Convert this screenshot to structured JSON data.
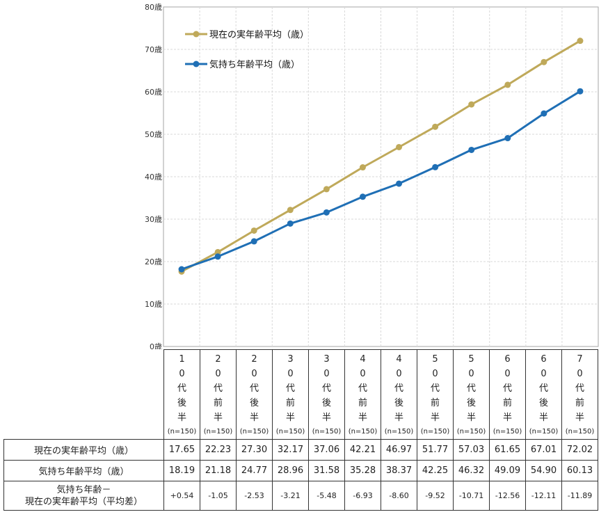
{
  "chart_data": {
    "type": "line",
    "categories": [
      "10代後半",
      "20代前半",
      "20代後半",
      "30代前半",
      "30代後半",
      "40代前半",
      "40代後半",
      "50代前半",
      "50代後半",
      "60代前半",
      "60代後半",
      "70代前半"
    ],
    "category_chars": [
      [
        "1",
        "0",
        "代",
        "後",
        "半"
      ],
      [
        "2",
        "0",
        "代",
        "前",
        "半"
      ],
      [
        "2",
        "0",
        "代",
        "後",
        "半"
      ],
      [
        "3",
        "0",
        "代",
        "前",
        "半"
      ],
      [
        "3",
        "0",
        "代",
        "後",
        "半"
      ],
      [
        "4",
        "0",
        "代",
        "前",
        "半"
      ],
      [
        "4",
        "0",
        "代",
        "後",
        "半"
      ],
      [
        "5",
        "0",
        "代",
        "前",
        "半"
      ],
      [
        "5",
        "0",
        "代",
        "後",
        "半"
      ],
      [
        "6",
        "0",
        "代",
        "前",
        "半"
      ],
      [
        "6",
        "0",
        "代",
        "後",
        "半"
      ],
      [
        "7",
        "0",
        "代",
        "前",
        "半"
      ]
    ],
    "n_label": "(n=150)",
    "y_ticks": [
      "0歳",
      "10歳",
      "20歳",
      "30歳",
      "40歳",
      "50歳",
      "60歳",
      "70歳",
      "80歳"
    ],
    "ylim": [
      0,
      80
    ],
    "grid": true,
    "legend_position": "top-left",
    "series": [
      {
        "name": "現在の実年齢平均（歳）",
        "color": "#BFA95A",
        "values": [
          17.65,
          22.23,
          27.3,
          32.17,
          37.06,
          42.21,
          46.97,
          51.77,
          57.03,
          61.65,
          67.01,
          72.02
        ],
        "labels": [
          "17.65",
          "22.23",
          "27.30",
          "32.17",
          "37.06",
          "42.21",
          "46.97",
          "51.77",
          "57.03",
          "61.65",
          "67.01",
          "72.02"
        ]
      },
      {
        "name": "気持ち年齢平均（歳）",
        "color": "#1F6FB5",
        "values": [
          18.19,
          21.18,
          24.77,
          28.96,
          31.58,
          35.28,
          38.37,
          42.25,
          46.32,
          49.09,
          54.9,
          60.13
        ],
        "labels": [
          "18.19",
          "21.18",
          "24.77",
          "28.96",
          "31.58",
          "35.28",
          "38.37",
          "42.25",
          "46.32",
          "49.09",
          "54.90",
          "60.13"
        ]
      }
    ],
    "table": {
      "row_labels": [
        "現在の実年齢平均（歳）",
        "気持ち年齢平均（歳）"
      ],
      "diff_label_line1": "気持ち年齢－",
      "diff_label_line2": "現在の実年齢平均（平均差）",
      "diff_values": [
        "+0.54",
        "-1.05",
        "-2.53",
        "-3.21",
        "-5.48",
        "-6.93",
        "-8.60",
        "-9.52",
        "-10.71",
        "-12.56",
        "-12.11",
        "-11.89"
      ]
    }
  }
}
